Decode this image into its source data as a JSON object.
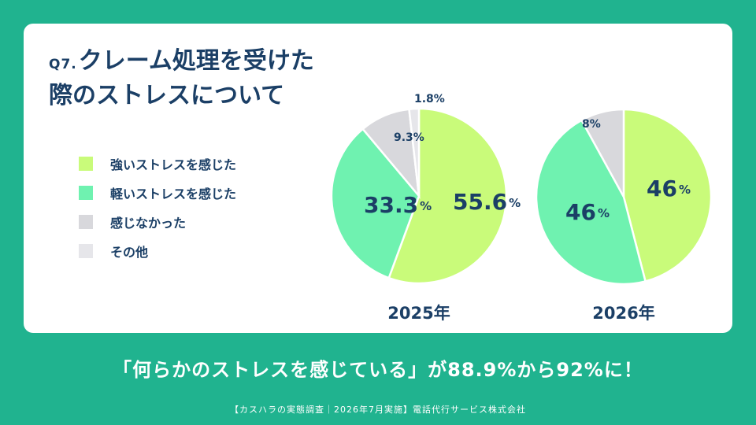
{
  "title": {
    "prefix": "Q7.",
    "line1": "クレーム処理を受けた",
    "line2": "際のストレスについて"
  },
  "legend": [
    {
      "label": "強いストレスを感じた",
      "color": "#c9fb7a"
    },
    {
      "label": "軽いストレスを感じた",
      "color": "#6ff2b0"
    },
    {
      "label": "感じなかった",
      "color": "#d8d8dc"
    },
    {
      "label": "その他",
      "color": "#e6e6ea"
    }
  ],
  "chart_data": [
    {
      "type": "pie",
      "xlabel": "2025年",
      "categories": [
        "強いストレスを感じた",
        "軽いストレスを感じた",
        "感じなかった",
        "その他"
      ],
      "values": [
        55.6,
        33.3,
        9.3,
        1.8
      ],
      "labels": [
        "55.6",
        "33.3",
        "9.3%",
        "1.8%"
      ]
    },
    {
      "type": "pie",
      "xlabel": "2026年",
      "categories": [
        "強いストレスを感じた",
        "軽いストレスを感じた",
        "感じなかった",
        "その他"
      ],
      "values": [
        46,
        46,
        8,
        0
      ],
      "labels": [
        "46",
        "46",
        "8%"
      ]
    }
  ],
  "headline": "「何らかのストレスを感じている」が88.9%から92%に！",
  "footer": "【カスハラの実態調査｜2026年7月実施】電話代行サービス株式会社"
}
